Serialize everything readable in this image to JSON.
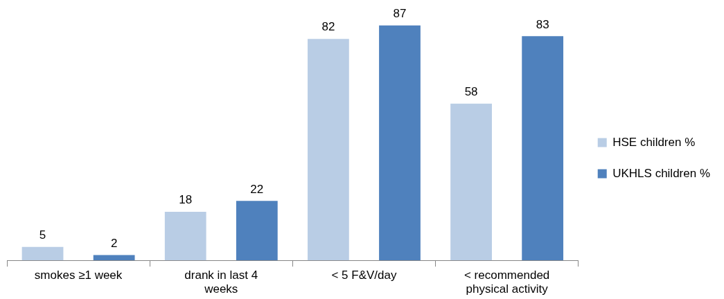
{
  "chart_data": {
    "type": "bar",
    "categories": [
      "smokes ≥1 week",
      "drank in last 4 weeks",
      "< 5 F&V/day",
      "< recommended physical activity"
    ],
    "series": [
      {
        "name": "HSE children %",
        "color": "#b9cde5",
        "values": [
          5,
          18,
          82,
          58
        ]
      },
      {
        "name": "UKHLS children %",
        "color": "#4f81bd",
        "values": [
          2,
          22,
          87,
          83
        ]
      }
    ],
    "data_labels": true,
    "grid": false,
    "legend": "right",
    "tick_labels": "x"
  }
}
